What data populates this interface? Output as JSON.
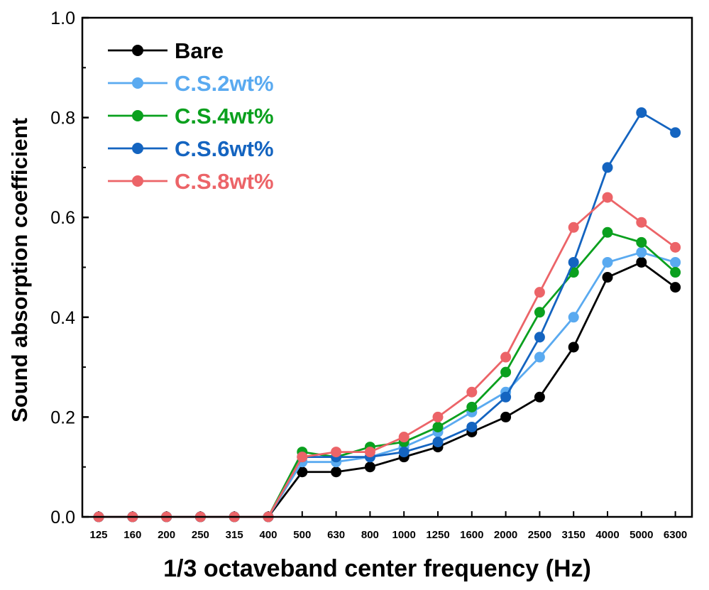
{
  "chart_data": {
    "type": "line",
    "xlabel": "1/3 octaveband center frequency (Hz)",
    "ylabel": "Sound absorption coefficient",
    "categories": [
      "125",
      "160",
      "200",
      "250",
      "315",
      "400",
      "500",
      "630",
      "800",
      "1000",
      "1250",
      "1600",
      "2000",
      "2500",
      "3150",
      "4000",
      "5000",
      "6300"
    ],
    "ylim": [
      0,
      1.0
    ],
    "yticks": [
      "0.0",
      "0.2",
      "0.4",
      "0.6",
      "0.8",
      "1.0"
    ],
    "grid": false,
    "legend_position": "top-left",
    "series": [
      {
        "name": "Bare",
        "color": "#000000",
        "values": [
          0,
          0,
          0,
          0,
          0,
          0,
          0.09,
          0.09,
          0.1,
          0.12,
          0.14,
          0.17,
          0.2,
          0.24,
          0.34,
          0.48,
          0.51,
          0.46
        ]
      },
      {
        "name": "C.S.2wt%",
        "color": "#5aaaf0",
        "values": [
          0,
          0,
          0,
          0,
          0,
          0,
          0.11,
          0.11,
          0.12,
          0.14,
          0.17,
          0.21,
          0.25,
          0.32,
          0.4,
          0.51,
          0.53,
          0.51
        ]
      },
      {
        "name": "C.S.4wt%",
        "color": "#0aa01e",
        "values": [
          0,
          0,
          0,
          0,
          0,
          0,
          0.13,
          0.12,
          0.14,
          0.15,
          0.18,
          0.22,
          0.29,
          0.41,
          0.49,
          0.57,
          0.55,
          0.49
        ]
      },
      {
        "name": "C.S.6wt%",
        "color": "#1464c0",
        "values": [
          0,
          0,
          0,
          0,
          0,
          0,
          0.12,
          0.12,
          0.12,
          0.13,
          0.15,
          0.18,
          0.24,
          0.36,
          0.51,
          0.7,
          0.81,
          0.77
        ]
      },
      {
        "name": "C.S.8wt%",
        "color": "#ec6468",
        "values": [
          0,
          0,
          0,
          0,
          0,
          0,
          0.12,
          0.13,
          0.13,
          0.16,
          0.2,
          0.25,
          0.32,
          0.45,
          0.58,
          0.64,
          0.59,
          0.54
        ]
      }
    ]
  }
}
